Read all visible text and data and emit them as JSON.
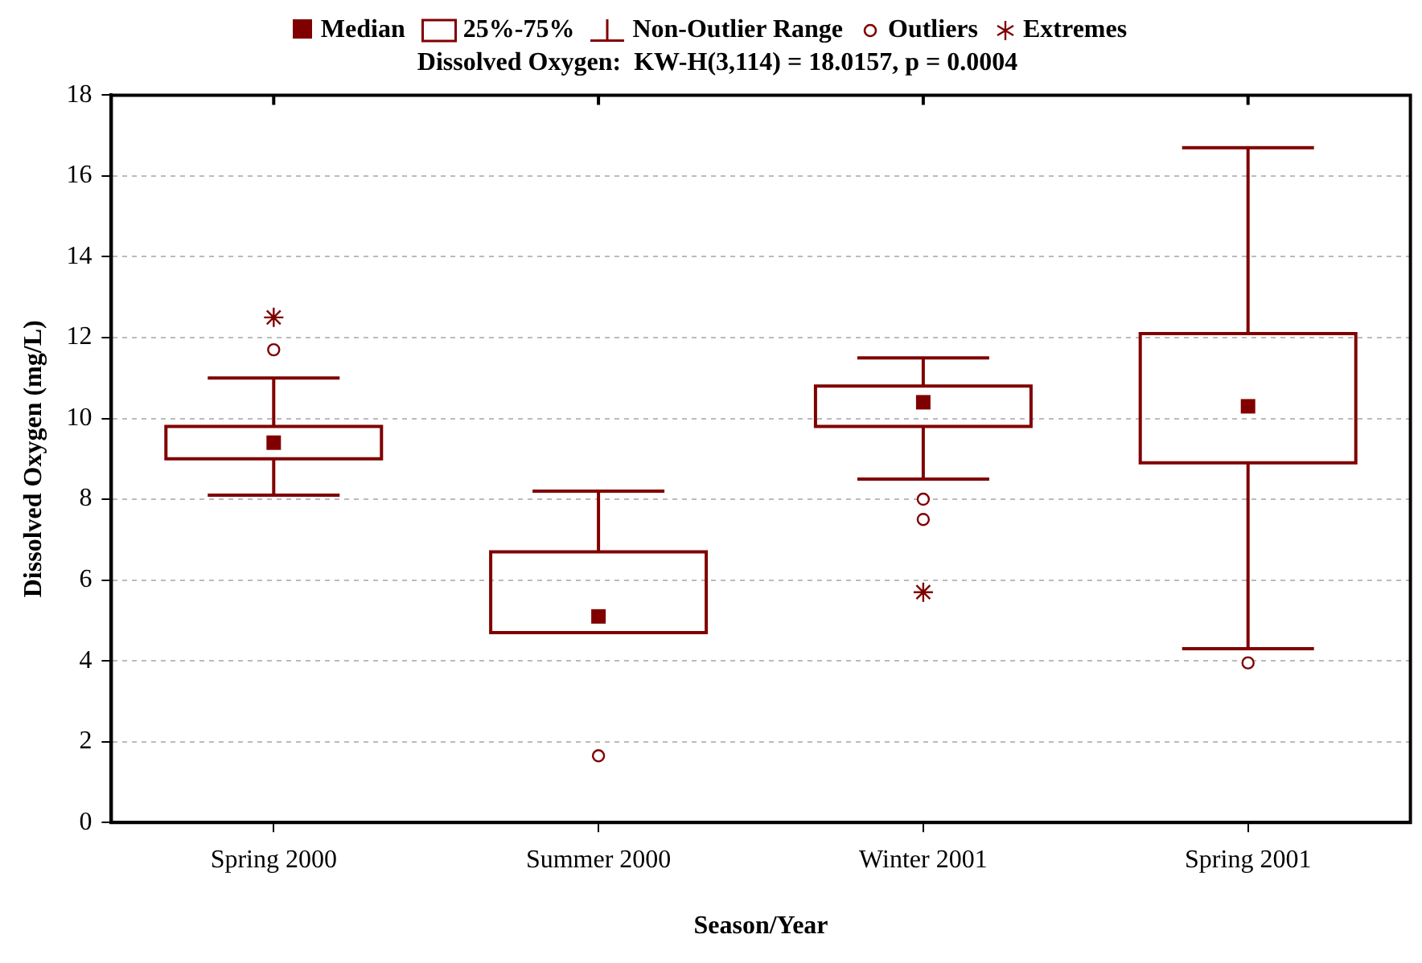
{
  "chart_data": {
    "type": "box",
    "title": "Dissolved Oxygen:  KW-H(3,114) = 18.0157, p = 0.0004",
    "xlabel": "Season/Year",
    "ylabel": "Dissolved Oxygen (mg/L)",
    "categories": [
      "Spring 2000",
      "Summer 2000",
      "Winter 2001",
      "Spring 2001"
    ],
    "annotations": [
      "25%-75%",
      "Non-Outlier Range"
    ],
    "series": [
      {
        "name": "Median",
        "color": "#800000",
        "boxes": [
          {
            "low": 8.1,
            "q1": 9.0,
            "median": 9.4,
            "q3": 9.8,
            "high": 11.0
          },
          {
            "low": 4.7,
            "q1": 4.7,
            "median": 5.1,
            "q3": 6.7,
            "high": 8.2
          },
          {
            "low": 8.5,
            "q1": 9.8,
            "median": 10.4,
            "q3": 10.8,
            "high": 11.5
          },
          {
            "low": 4.3,
            "q1": 8.9,
            "median": 10.3,
            "q3": 12.1,
            "high": 16.7
          }
        ]
      },
      {
        "name": "Outliers",
        "type": "scatter",
        "marker": "circle",
        "color": "#800000",
        "x": [
          "Spring 2000",
          "Summer 2000",
          "Winter 2001",
          "Winter 2001",
          "Spring 2001"
        ],
        "values": [
          11.7,
          1.65,
          8.0,
          7.5,
          3.95
        ]
      },
      {
        "name": "Extremes",
        "type": "scatter",
        "marker": "cross",
        "color": "#800000",
        "x": [
          "Spring 2000",
          "Winter 2001"
        ],
        "values": [
          12.5,
          5.7
        ]
      }
    ],
    "ylim": [
      0,
      18
    ],
    "yticks": [
      0,
      2,
      4,
      6,
      8,
      10,
      12,
      14,
      16,
      18
    ],
    "grid": "y",
    "legend": "top"
  }
}
